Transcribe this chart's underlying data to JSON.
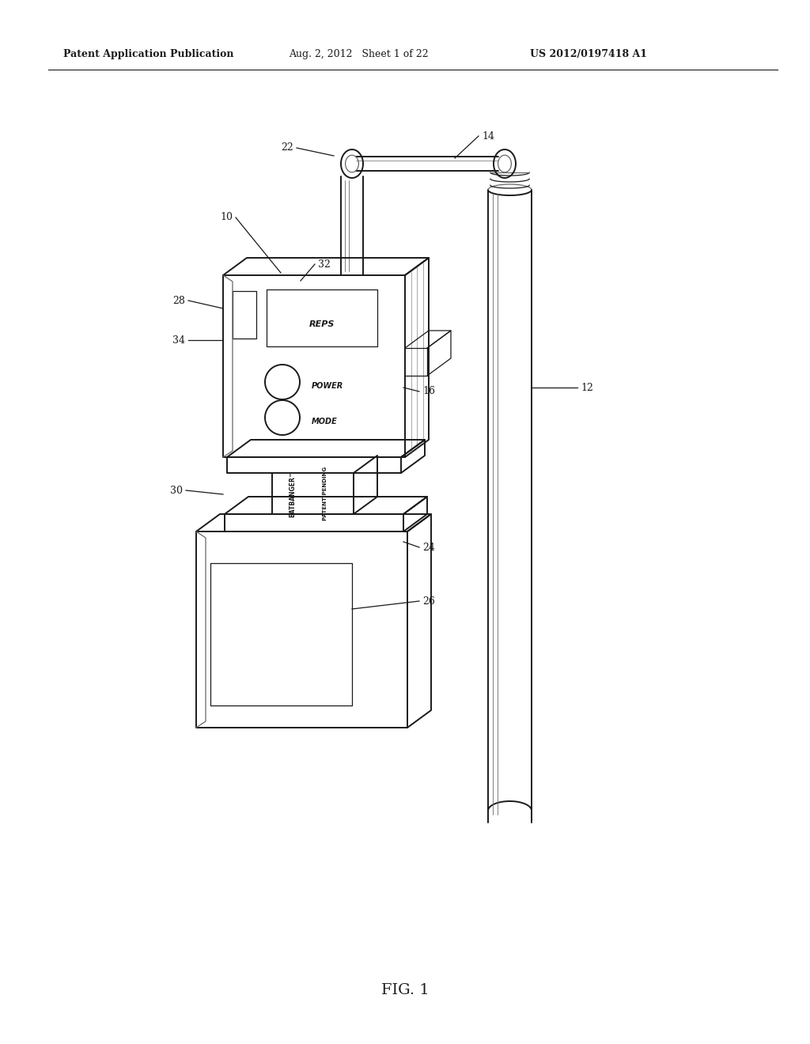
{
  "bg_color": "#ffffff",
  "header_left": "Patent Application Publication",
  "header_center": "Aug. 2, 2012   Sheet 1 of 22",
  "header_right": "US 2012/0197418 A1",
  "footer_label": "FIG. 1",
  "color_main": "#1a1a1a",
  "color_mid": "#666666",
  "lw_main": 1.4,
  "lw_thin": 0.9,
  "lw_shade": 0.7
}
